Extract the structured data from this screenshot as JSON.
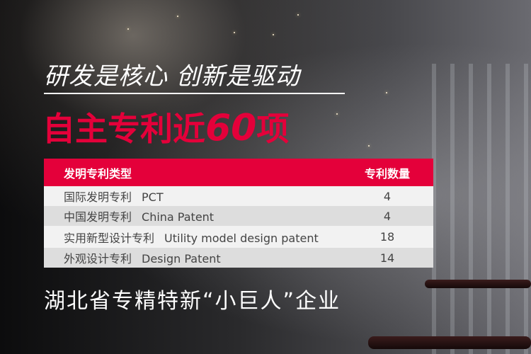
{
  "headline": "研发是核心 创新是驱动",
  "subheadline": {
    "prefix": "自主专利近",
    "number": "60",
    "suffix": "项"
  },
  "table": {
    "headers": {
      "type": "发明专利类型",
      "count": "专利数量"
    },
    "rows": [
      {
        "cn": "国际发明专利",
        "en": "PCT",
        "count": "4"
      },
      {
        "cn": "中国发明专利",
        "en": "China Patent",
        "count": "4"
      },
      {
        "cn": "实用新型设计专利",
        "en": "Utility model design patent",
        "count": "18"
      },
      {
        "cn": "外观设计专利",
        "en": "Design Patent",
        "count": "14"
      }
    ]
  },
  "footer": "湖北省专精特新“小巨人”企业",
  "colors": {
    "accent": "#e4003a",
    "text": "#ffffff"
  }
}
